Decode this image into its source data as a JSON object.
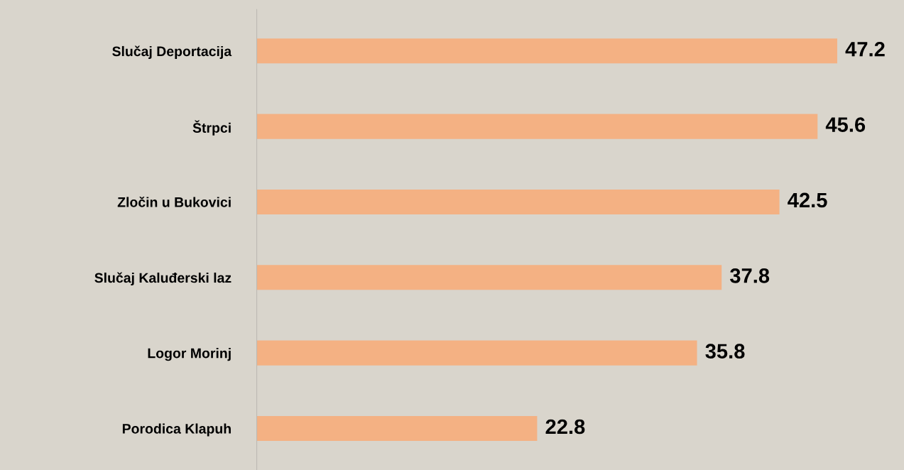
{
  "chart_data": {
    "type": "bar",
    "orientation": "horizontal",
    "categories": [
      "Slučaj Deportacija",
      "Štrpci",
      "Zločin u Bukovici",
      "Slučaj Kaluđerski laz",
      "Logor Morinj",
      "Porodica Klapuh"
    ],
    "values": [
      47.2,
      45.6,
      42.5,
      37.8,
      35.8,
      22.8
    ],
    "color": "#f4b183",
    "data_labels": true,
    "tick_labels": "y"
  }
}
